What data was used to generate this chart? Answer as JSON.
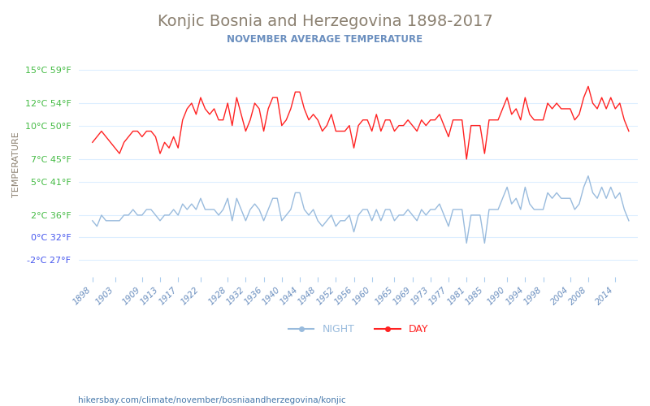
{
  "title": "Konjic Bosnia and Herzegovina 1898-2017",
  "subtitle": "NOVEMBER AVERAGE TEMPERATURE",
  "title_color": "#8B8070",
  "subtitle_color": "#6B8FBF",
  "xlabel_color": "#6B8FBF",
  "ylabel_text": "TEMPERATURE",
  "ylabel_color": "#8B8070",
  "background_color": "#ffffff",
  "grid_color": "#ddeeff",
  "years": [
    1898,
    1899,
    1900,
    1901,
    1902,
    1903,
    1904,
    1905,
    1906,
    1907,
    1908,
    1909,
    1910,
    1911,
    1912,
    1913,
    1914,
    1915,
    1916,
    1917,
    1918,
    1919,
    1920,
    1921,
    1922,
    1923,
    1924,
    1925,
    1926,
    1927,
    1928,
    1929,
    1930,
    1931,
    1932,
    1933,
    1934,
    1935,
    1936,
    1937,
    1938,
    1939,
    1940,
    1941,
    1942,
    1943,
    1944,
    1945,
    1946,
    1947,
    1948,
    1949,
    1950,
    1951,
    1952,
    1953,
    1954,
    1955,
    1956,
    1957,
    1958,
    1959,
    1960,
    1961,
    1962,
    1963,
    1964,
    1965,
    1966,
    1967,
    1968,
    1969,
    1970,
    1971,
    1972,
    1973,
    1974,
    1975,
    1976,
    1977,
    1978,
    1979,
    1980,
    1981,
    1982,
    1983,
    1984,
    1985,
    1986,
    1987,
    1988,
    1989,
    1990,
    1991,
    1992,
    1993,
    1994,
    1995,
    1996,
    1997,
    1998,
    1999,
    2000,
    2001,
    2002,
    2003,
    2004,
    2005,
    2006,
    2007,
    2008,
    2009,
    2010,
    2011,
    2012,
    2013,
    2014,
    2015,
    2016,
    2017
  ],
  "day_temps": [
    8.5,
    9.0,
    9.5,
    9.0,
    8.5,
    8.0,
    7.5,
    8.5,
    9.0,
    9.5,
    9.5,
    9.0,
    9.5,
    9.5,
    9.0,
    7.5,
    8.5,
    8.0,
    9.0,
    8.0,
    10.5,
    11.5,
    12.0,
    11.0,
    12.5,
    11.5,
    11.0,
    11.5,
    10.5,
    10.5,
    12.0,
    10.0,
    12.5,
    11.0,
    9.5,
    10.5,
    12.0,
    11.5,
    9.5,
    11.5,
    12.5,
    12.5,
    10.0,
    10.5,
    11.5,
    13.0,
    13.0,
    11.5,
    10.5,
    11.0,
    10.5,
    9.5,
    10.0,
    11.0,
    9.5,
    9.5,
    9.5,
    10.0,
    8.0,
    10.0,
    10.5,
    10.5,
    9.5,
    11.0,
    9.5,
    10.5,
    10.5,
    9.5,
    10.0,
    10.0,
    10.5,
    10.0,
    9.5,
    10.5,
    10.0,
    10.5,
    10.5,
    11.0,
    10.0,
    9.0,
    10.5,
    10.5,
    10.5,
    7.0,
    10.0,
    10.0,
    10.0,
    7.5,
    10.5,
    10.5,
    10.5,
    11.5,
    12.5,
    11.0,
    11.5,
    10.5,
    12.5,
    11.0,
    10.5,
    10.5,
    10.5,
    12.0,
    11.5,
    12.0,
    11.5,
    11.5,
    11.5,
    10.5,
    11.0,
    12.5,
    13.5,
    12.0,
    11.5,
    12.5,
    11.5,
    12.5,
    11.5,
    12.0,
    10.5,
    9.5
  ],
  "night_temps": [
    1.5,
    1.0,
    2.0,
    1.5,
    1.5,
    1.5,
    1.5,
    2.0,
    2.0,
    2.5,
    2.0,
    2.0,
    2.5,
    2.5,
    2.0,
    1.5,
    2.0,
    2.0,
    2.5,
    2.0,
    3.0,
    2.5,
    3.0,
    2.5,
    3.5,
    2.5,
    2.5,
    2.5,
    2.0,
    2.5,
    3.5,
    1.5,
    3.5,
    2.5,
    1.5,
    2.5,
    3.0,
    2.5,
    1.5,
    2.5,
    3.5,
    3.5,
    1.5,
    2.0,
    2.5,
    4.0,
    4.0,
    2.5,
    2.0,
    2.5,
    1.5,
    1.0,
    1.5,
    2.0,
    1.0,
    1.5,
    1.5,
    2.0,
    0.5,
    2.0,
    2.5,
    2.5,
    1.5,
    2.5,
    1.5,
    2.5,
    2.5,
    1.5,
    2.0,
    2.0,
    2.5,
    2.0,
    1.5,
    2.5,
    2.0,
    2.5,
    2.5,
    3.0,
    2.0,
    1.0,
    2.5,
    2.5,
    2.5,
    -0.5,
    2.0,
    2.0,
    2.0,
    -0.5,
    2.5,
    2.5,
    2.5,
    3.5,
    4.5,
    3.0,
    3.5,
    2.5,
    4.5,
    3.0,
    2.5,
    2.5,
    2.5,
    4.0,
    3.5,
    4.0,
    3.5,
    3.5,
    3.5,
    2.5,
    3.0,
    4.5,
    5.5,
    4.0,
    3.5,
    4.5,
    3.5,
    4.5,
    3.5,
    4.0,
    2.5,
    1.5
  ],
  "day_color": "#ff2222",
  "night_color": "#99bbdd",
  "yticks_celsius": [
    15,
    12,
    10,
    7,
    5,
    2,
    0,
    -2
  ],
  "yticks_fahrenheit": [
    59,
    54,
    50,
    45,
    41,
    36,
    32,
    27
  ],
  "ylim": [
    -3.5,
    16.5
  ],
  "xtick_years": [
    1898,
    1903,
    1909,
    1913,
    1917,
    1922,
    1928,
    1932,
    1936,
    1940,
    1944,
    1948,
    1952,
    1956,
    1960,
    1965,
    1969,
    1973,
    1977,
    1981,
    1985,
    1990,
    1994,
    1998,
    2004,
    2008,
    2014
  ],
  "footer_text": "hikersbay.com/climate/november/bosniaandherzegovina/konjic",
  "footer_color": "#4477aa",
  "legend_night": "NIGHT",
  "legend_day": "DAY"
}
